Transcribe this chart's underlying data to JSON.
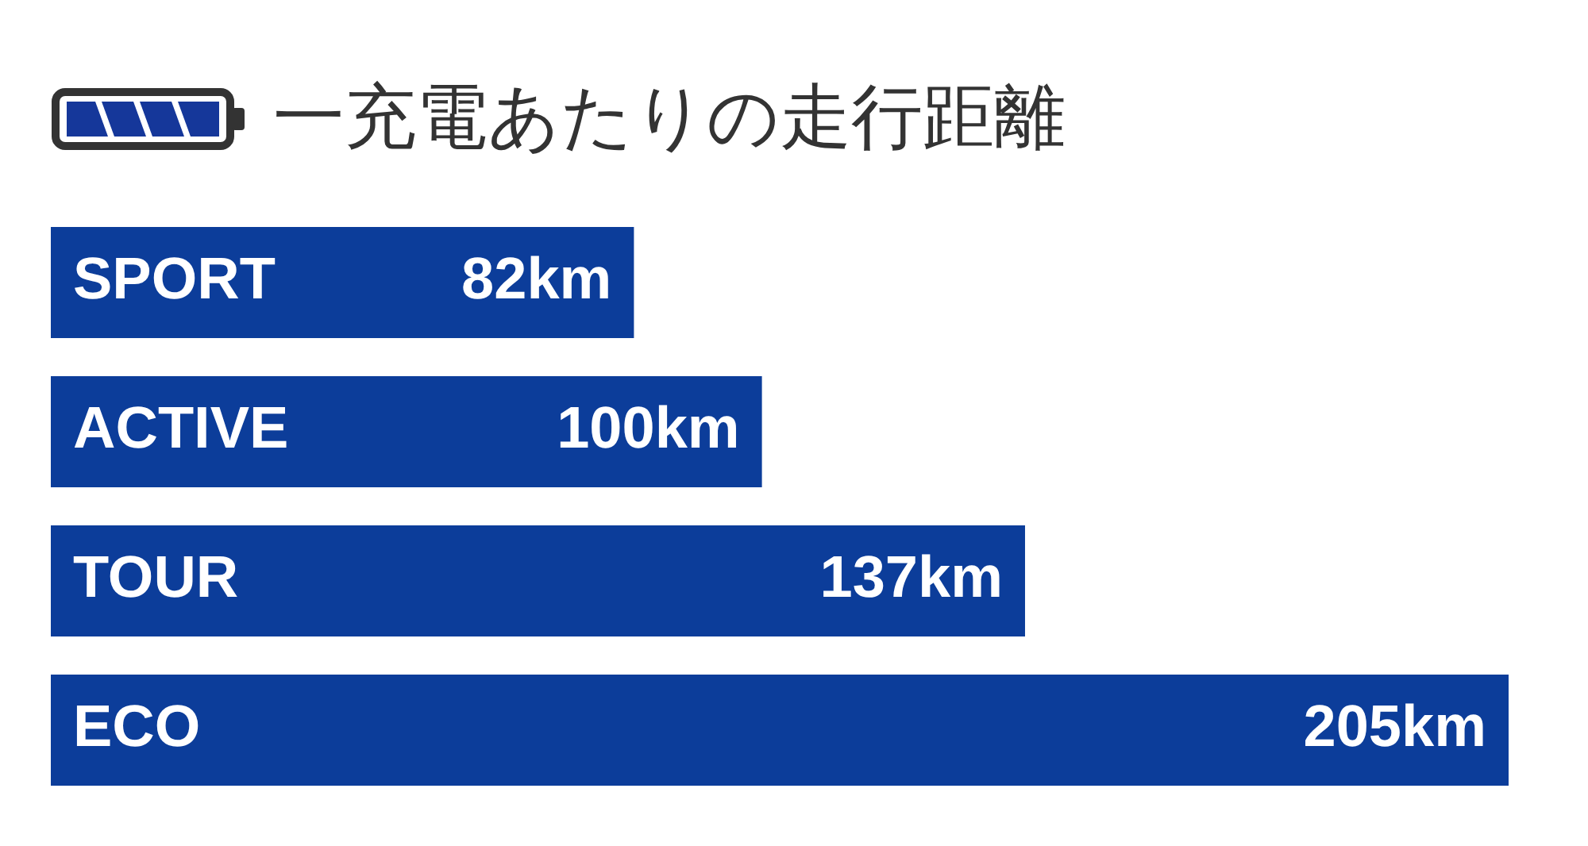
{
  "chart_data": {
    "type": "bar",
    "title": "一充電あたりの走行距離",
    "orientation": "horizontal",
    "categories": [
      "SPORT",
      "ACTIVE",
      "TOUR",
      "ECO"
    ],
    "values": [
      82,
      100,
      137,
      205
    ],
    "value_labels": [
      "82km",
      "100km",
      "137km",
      "205km"
    ],
    "color": "#0c3d9a",
    "tick_labels": "y"
  }
}
